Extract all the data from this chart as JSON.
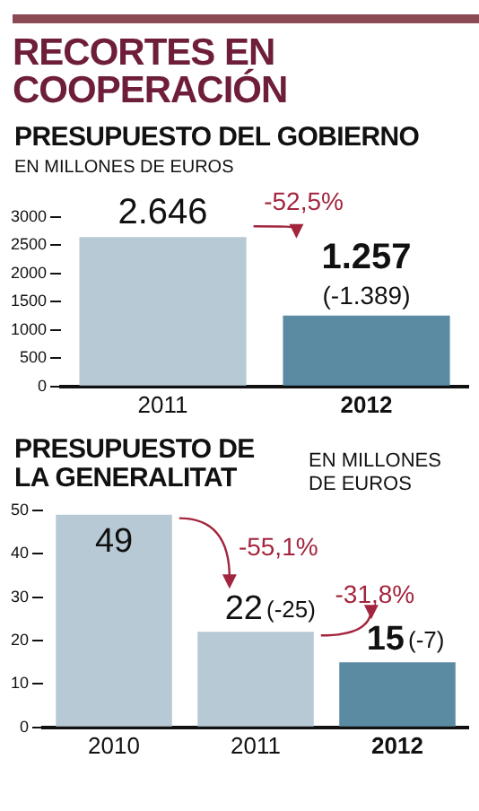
{
  "chart_data": [
    {
      "type": "bar",
      "title": "RECORTES EN COOPERACIÓN",
      "subtitle": "PRESUPUESTO DEL GOBIERNO",
      "ylabel": "EN MILLONES DE EUROS",
      "categories": [
        "2011",
        "2012"
      ],
      "values": [
        2646,
        1257
      ],
      "colors": [
        "#b7c9d5",
        "#5a8ba3"
      ],
      "value_labels": [
        "2.646",
        "1.257"
      ],
      "ylim": [
        0,
        3000
      ],
      "yticks": [
        0,
        500,
        1000,
        1500,
        2000,
        2500,
        3000
      ],
      "grid": false,
      "legend": false,
      "annotations": [
        "-52,5%",
        {
          "text": "(-1.389)",
          "x": "2012",
          "y": 1257
        }
      ]
    },
    {
      "type": "bar",
      "title": "PRESUPUESTO DE LA GENERALITAT",
      "ylabel": "EN MILLONES DE EUROS",
      "categories": [
        "2010",
        "2011",
        "2012"
      ],
      "values": [
        49,
        22,
        15
      ],
      "colors": [
        "#b7c9d5",
        "#b7c9d5",
        "#5a8ba3"
      ],
      "value_labels": [
        "49",
        "22",
        "15"
      ],
      "ylim": [
        0,
        50
      ],
      "yticks": [
        0,
        10,
        20,
        30,
        40,
        50
      ],
      "grid": false,
      "legend": false,
      "annotations": [
        "-55,1%",
        "-31,8%",
        {
          "text": "(-25)",
          "x": "2011",
          "y": 22
        },
        {
          "text": "(-7)",
          "x": "2012",
          "y": 15
        }
      ]
    }
  ]
}
